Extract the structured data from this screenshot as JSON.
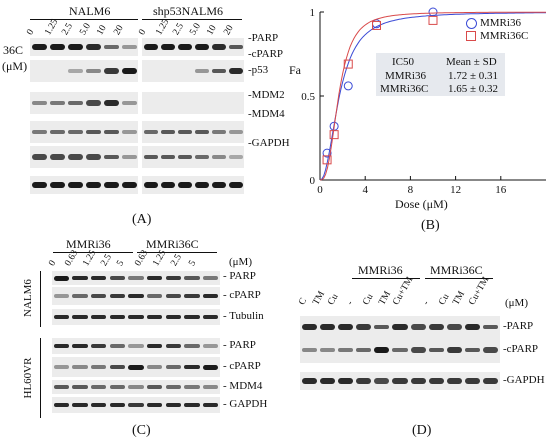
{
  "panelA": {
    "letter": "(A)",
    "group1": "NALM6",
    "group2": "shp53NALM6",
    "drug_label": "36C",
    "unit_label": "(μM)",
    "doses": [
      "0",
      "1.25",
      "2.5",
      "5.0",
      "10",
      "20"
    ],
    "rows": [
      "PARP",
      "cPARP",
      "p53",
      "MDM2",
      "MDM4",
      "GAPDH"
    ]
  },
  "panelB": {
    "letter": "(B)",
    "ylabel": "Fa",
    "xlabel": "Dose (μM)",
    "table_header_1": "IC50",
    "table_header_2": "Mean ± SD",
    "rows": [
      {
        "name": "MMRi36",
        "value": "1.72 ± 0.31"
      },
      {
        "name": "MMRi36C",
        "value": "1.65 ± 0.32"
      }
    ],
    "legend": [
      "MMRi36",
      "MMRi36C"
    ]
  },
  "chart_data": {
    "type": "scatter",
    "xlabel": "Dose (μM)",
    "ylabel": "Fa",
    "xlim": [
      0,
      20
    ],
    "ylim": [
      0,
      1
    ],
    "xticks": [
      "0",
      "4",
      "8",
      "12",
      "16"
    ],
    "yticks": [
      "0",
      "0.5",
      "1"
    ],
    "legend_position": "top-right",
    "series": [
      {
        "name": "MMRi36",
        "color": "#3b4bd6",
        "marker": "circle",
        "x": [
          0.625,
          1.25,
          2.5,
          5,
          10
        ],
        "y": [
          0.16,
          0.32,
          0.56,
          0.93,
          1.0
        ],
        "fit_ic50": 1.72,
        "fit_hill": 2.2
      },
      {
        "name": "MMRi36C",
        "color": "#d94a4a",
        "marker": "square",
        "x": [
          0.625,
          1.25,
          2.5,
          5,
          10
        ],
        "y": [
          0.12,
          0.27,
          0.69,
          0.92,
          0.95
        ],
        "fit_ic50": 1.65,
        "fit_hill": 2.8
      }
    ]
  },
  "panelC": {
    "letter": "(C)",
    "group1": "MMRi36",
    "group2": "MMRi36C",
    "unit_label": "(μM)",
    "doses": [
      "0",
      "0.63",
      "1.25",
      "2.5",
      "5",
      "0.63",
      "1.25",
      "2.5",
      "5"
    ],
    "cell1": "NALM6",
    "cell2": "HL60VR",
    "rows1": [
      "PARP",
      "cPARP",
      "Tubulin"
    ],
    "rows2": [
      "PARP",
      "cPARP",
      "MDM4",
      "GAPDH"
    ]
  },
  "panelD": {
    "letter": "(D)",
    "group1": "MMRi36",
    "group2": "MMRi36C",
    "unit_label": "(μM)",
    "lanes": [
      "C",
      "TM",
      "Cu",
      "-",
      "Cu",
      "TM",
      "Cu+TM",
      "-",
      "Cu",
      "TM",
      "Cu+TM"
    ],
    "rows": [
      "PARP",
      "cPARP",
      "GAPDH"
    ]
  }
}
